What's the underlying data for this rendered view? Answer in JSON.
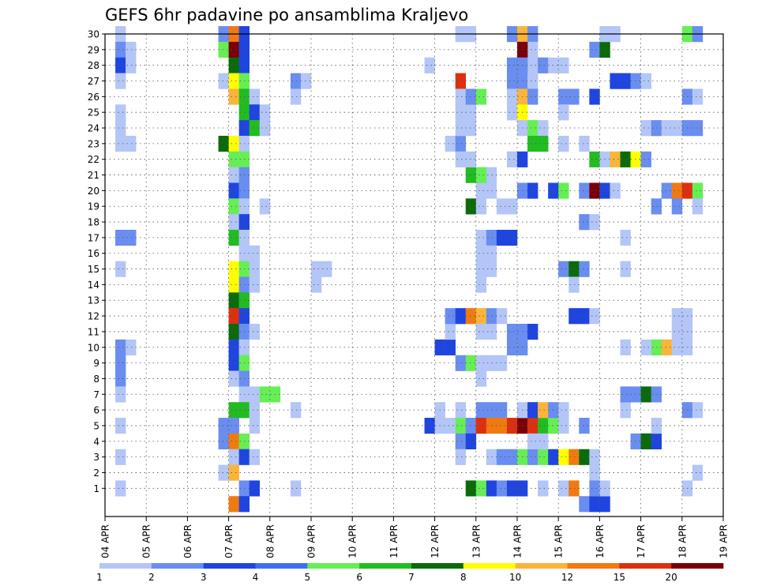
{
  "chart_data": {
    "type": "heatmap",
    "title": "GEFS 6hr padavine po ansamblima Kraljevo",
    "xlabel": "",
    "ylabel": "",
    "x_ticks": [
      "04 APR",
      "05 APR",
      "06 APR",
      "07 APR",
      "08 APR",
      "09 APR",
      "10 APR",
      "11 APR",
      "12 APR",
      "13 APR",
      "14 APR",
      "15 APR",
      "16 APR",
      "17 APR",
      "18 APR",
      "19 APR"
    ],
    "y_ticks": [
      1,
      2,
      3,
      4,
      5,
      6,
      7,
      8,
      9,
      10,
      11,
      12,
      13,
      14,
      15,
      16,
      17,
      18,
      19,
      20,
      21,
      22,
      23,
      24,
      25,
      26,
      27,
      28,
      29,
      30
    ],
    "ylim": [
      0,
      30
    ],
    "x_steps": 60,
    "grid": true,
    "legend": {
      "position": "bottom",
      "labels": [
        "1",
        "2",
        "3",
        "4",
        "5",
        "6",
        "7",
        "8",
        "10",
        "12",
        "15",
        "20"
      ],
      "colors": [
        "#b3c6f7",
        "#6a8df0",
        "#1f45e0",
        "#3f6ff0",
        "#66ee55",
        "#22bb22",
        "#0b6b0b",
        "#ffff00",
        "#fbb43a",
        "#f07a10",
        "#dd3010",
        "#7a0008"
      ]
    },
    "cells": [
      [
        1,
        30,
        0
      ],
      [
        1,
        29,
        1
      ],
      [
        2,
        29,
        0
      ],
      [
        1,
        28,
        2
      ],
      [
        2,
        28,
        0
      ],
      [
        1,
        27,
        0
      ],
      [
        1,
        25,
        0
      ],
      [
        1,
        24,
        0
      ],
      [
        1,
        23,
        0
      ],
      [
        2,
        23,
        0
      ],
      [
        1,
        17,
        1
      ],
      [
        2,
        17,
        1
      ],
      [
        1,
        15,
        0
      ],
      [
        1,
        10,
        1
      ],
      [
        2,
        10,
        0
      ],
      [
        1,
        9,
        1
      ],
      [
        1,
        8,
        1
      ],
      [
        1,
        7,
        0
      ],
      [
        1,
        5,
        0
      ],
      [
        1,
        3,
        0
      ],
      [
        1,
        1,
        0
      ],
      [
        11,
        30,
        1
      ],
      [
        12,
        30,
        9
      ],
      [
        13,
        30,
        2
      ],
      [
        11,
        29,
        4
      ],
      [
        12,
        29,
        11
      ],
      [
        13,
        29,
        2
      ],
      [
        12,
        28,
        6
      ],
      [
        13,
        28,
        2
      ],
      [
        11,
        27,
        0
      ],
      [
        12,
        27,
        7
      ],
      [
        13,
        27,
        4
      ],
      [
        12,
        26,
        8
      ],
      [
        13,
        26,
        5
      ],
      [
        14,
        26,
        0
      ],
      [
        13,
        25,
        5
      ],
      [
        14,
        25,
        2
      ],
      [
        15,
        25,
        0
      ],
      [
        13,
        24,
        2
      ],
      [
        14,
        24,
        5
      ],
      [
        15,
        24,
        0
      ],
      [
        11,
        23,
        6
      ],
      [
        12,
        23,
        7
      ],
      [
        13,
        23,
        0
      ],
      [
        12,
        22,
        4
      ],
      [
        13,
        22,
        4
      ],
      [
        12,
        21,
        0
      ],
      [
        13,
        21,
        1
      ],
      [
        12,
        20,
        2
      ],
      [
        13,
        20,
        1
      ],
      [
        12,
        19,
        4
      ],
      [
        13,
        19,
        0
      ],
      [
        12,
        18,
        0
      ],
      [
        13,
        18,
        2
      ],
      [
        12,
        17,
        5
      ],
      [
        13,
        17,
        0
      ],
      [
        13,
        16,
        0
      ],
      [
        14,
        16,
        0
      ],
      [
        12,
        15,
        7
      ],
      [
        13,
        15,
        4
      ],
      [
        14,
        15,
        0
      ],
      [
        12,
        14,
        7
      ],
      [
        13,
        14,
        1
      ],
      [
        14,
        14,
        0
      ],
      [
        12,
        13,
        6
      ],
      [
        13,
        13,
        5
      ],
      [
        12,
        12,
        10
      ],
      [
        13,
        12,
        2
      ],
      [
        12,
        11,
        6
      ],
      [
        13,
        11,
        1
      ],
      [
        14,
        11,
        0
      ],
      [
        12,
        10,
        2
      ],
      [
        13,
        10,
        0
      ],
      [
        12,
        9,
        2
      ],
      [
        13,
        9,
        4
      ],
      [
        12,
        8,
        0
      ],
      [
        13,
        8,
        1
      ],
      [
        13,
        7,
        0
      ],
      [
        14,
        7,
        0
      ],
      [
        15,
        7,
        4
      ],
      [
        16,
        7,
        4
      ],
      [
        12,
        6,
        5
      ],
      [
        13,
        6,
        5
      ],
      [
        14,
        6,
        0
      ],
      [
        11,
        5,
        1
      ],
      [
        12,
        5,
        1
      ],
      [
        14,
        5,
        0
      ],
      [
        11,
        4,
        1
      ],
      [
        12,
        4,
        9
      ],
      [
        13,
        4,
        4
      ],
      [
        12,
        3,
        0
      ],
      [
        13,
        3,
        2
      ],
      [
        14,
        3,
        0
      ],
      [
        11,
        2,
        0
      ],
      [
        12,
        2,
        8
      ],
      [
        13,
        1,
        1
      ],
      [
        14,
        1,
        2
      ],
      [
        12,
        0,
        9
      ],
      [
        13,
        0,
        2
      ],
      [
        15,
        19,
        0
      ],
      [
        18,
        27,
        1
      ],
      [
        19,
        27,
        0
      ],
      [
        18,
        26,
        0
      ],
      [
        18,
        6,
        0
      ],
      [
        18,
        1,
        0
      ],
      [
        20,
        15,
        0
      ],
      [
        20,
        14,
        0
      ],
      [
        21,
        15,
        0
      ],
      [
        31,
        28,
        0
      ],
      [
        34,
        30,
        0
      ],
      [
        35,
        30,
        0
      ],
      [
        33,
        23,
        0
      ],
      [
        34,
        23,
        1
      ],
      [
        34,
        25,
        0
      ],
      [
        35,
        25,
        0
      ],
      [
        32,
        10,
        2
      ],
      [
        33,
        10,
        2
      ],
      [
        33,
        11,
        0
      ],
      [
        32,
        6,
        0
      ],
      [
        34,
        6,
        0
      ],
      [
        31,
        5,
        2
      ],
      [
        32,
        5,
        0
      ],
      [
        33,
        5,
        0
      ],
      [
        34,
        5,
        4
      ],
      [
        35,
        5,
        1
      ],
      [
        36,
        6,
        1
      ],
      [
        37,
        6,
        1
      ],
      [
        38,
        6,
        1
      ],
      [
        36,
        5,
        10
      ],
      [
        37,
        5,
        9
      ],
      [
        38,
        5,
        9
      ],
      [
        39,
        5,
        10
      ],
      [
        40,
        5,
        11
      ],
      [
        41,
        5,
        10
      ],
      [
        42,
        5,
        5
      ],
      [
        43,
        5,
        4
      ],
      [
        44,
        5,
        0
      ],
      [
        46,
        5,
        1
      ],
      [
        33,
        12,
        1
      ],
      [
        34,
        12,
        2
      ],
      [
        35,
        12,
        9
      ],
      [
        36,
        12,
        8
      ],
      [
        37,
        12,
        1
      ],
      [
        38,
        12,
        0
      ],
      [
        36,
        11,
        0
      ],
      [
        37,
        11,
        0
      ],
      [
        34,
        9,
        1
      ],
      [
        35,
        9,
        4
      ],
      [
        36,
        9,
        0
      ],
      [
        37,
        9,
        0
      ],
      [
        38,
        9,
        0
      ],
      [
        36,
        8,
        0
      ],
      [
        34,
        4,
        1
      ],
      [
        35,
        4,
        2
      ],
      [
        34,
        3,
        0
      ],
      [
        37,
        3,
        0
      ],
      [
        38,
        3,
        1
      ],
      [
        39,
        3,
        1
      ],
      [
        40,
        3,
        4
      ],
      [
        41,
        3,
        1
      ],
      [
        42,
        3,
        4
      ],
      [
        43,
        3,
        2
      ],
      [
        44,
        3,
        7
      ],
      [
        45,
        3,
        9
      ],
      [
        46,
        3,
        6
      ],
      [
        47,
        3,
        0
      ],
      [
        35,
        1,
        6
      ],
      [
        36,
        1,
        4
      ],
      [
        37,
        1,
        2
      ],
      [
        38,
        1,
        1
      ],
      [
        39,
        1,
        2
      ],
      [
        40,
        1,
        2
      ],
      [
        42,
        1,
        0
      ],
      [
        44,
        1,
        0
      ],
      [
        45,
        1,
        9
      ],
      [
        35,
        19,
        6
      ],
      [
        36,
        19,
        0
      ],
      [
        36,
        20,
        0
      ],
      [
        37,
        20,
        0
      ],
      [
        37,
        21,
        0
      ],
      [
        36,
        17,
        0
      ],
      [
        37,
        17,
        1
      ],
      [
        38,
        17,
        2
      ],
      [
        36,
        16,
        0
      ],
      [
        37,
        16,
        0
      ],
      [
        36,
        15,
        0
      ],
      [
        37,
        15,
        0
      ],
      [
        36,
        14,
        0
      ],
      [
        34,
        27,
        10
      ],
      [
        34,
        26,
        0
      ],
      [
        35,
        26,
        1
      ],
      [
        36,
        26,
        4
      ],
      [
        34,
        24,
        0
      ],
      [
        35,
        24,
        0
      ],
      [
        35,
        21,
        5
      ],
      [
        36,
        21,
        4
      ],
      [
        34,
        22,
        0
      ],
      [
        35,
        22,
        0
      ],
      [
        38,
        19,
        0
      ],
      [
        39,
        19,
        0
      ],
      [
        39,
        30,
        1
      ],
      [
        40,
        30,
        8
      ],
      [
        41,
        30,
        1
      ],
      [
        41,
        29,
        0
      ],
      [
        41,
        28,
        0
      ],
      [
        42,
        28,
        1
      ],
      [
        43,
        28,
        0
      ],
      [
        44,
        28,
        0
      ],
      [
        39,
        27,
        1
      ],
      [
        40,
        27,
        1
      ],
      [
        41,
        27,
        0
      ],
      [
        39,
        26,
        0
      ],
      [
        40,
        26,
        8
      ],
      [
        41,
        26,
        1
      ],
      [
        39,
        25,
        0
      ],
      [
        40,
        25,
        7
      ],
      [
        40,
        24,
        0
      ],
      [
        41,
        24,
        4
      ],
      [
        42,
        24,
        0
      ],
      [
        41,
        23,
        5
      ],
      [
        42,
        23,
        5
      ],
      [
        39,
        22,
        0
      ],
      [
        40,
        22,
        2
      ],
      [
        40,
        20,
        1
      ],
      [
        41,
        20,
        2
      ],
      [
        43,
        20,
        2
      ],
      [
        44,
        20,
        4
      ],
      [
        40,
        29,
        11
      ],
      [
        40,
        28,
        1
      ],
      [
        39,
        28,
        1
      ],
      [
        39,
        17,
        2
      ],
      [
        39,
        11,
        1
      ],
      [
        39,
        10,
        1
      ],
      [
        40,
        10,
        1
      ],
      [
        40,
        11,
        1
      ],
      [
        41,
        11,
        2
      ],
      [
        40,
        6,
        0
      ],
      [
        41,
        6,
        2
      ],
      [
        42,
        6,
        8
      ],
      [
        43,
        6,
        1
      ],
      [
        44,
        6,
        0
      ],
      [
        41,
        4,
        0
      ],
      [
        42,
        4,
        0
      ],
      [
        44,
        26,
        1
      ],
      [
        45,
        26,
        1
      ],
      [
        44,
        25,
        0
      ],
      [
        44,
        23,
        0
      ],
      [
        46,
        23,
        0
      ],
      [
        46,
        20,
        1
      ],
      [
        47,
        20,
        11
      ],
      [
        48,
        20,
        2
      ],
      [
        49,
        20,
        0
      ],
      [
        46,
        18,
        1
      ],
      [
        47,
        18,
        0
      ],
      [
        44,
        15,
        1
      ],
      [
        45,
        15,
        6
      ],
      [
        46,
        15,
        1
      ],
      [
        45,
        12,
        2
      ],
      [
        46,
        12,
        2
      ],
      [
        47,
        12,
        0
      ],
      [
        45,
        14,
        0
      ],
      [
        46,
        0,
        1
      ],
      [
        47,
        0,
        2
      ],
      [
        48,
        0,
        2
      ],
      [
        47,
        2,
        0
      ],
      [
        47,
        1,
        1
      ],
      [
        48,
        1,
        0
      ],
      [
        47,
        26,
        2
      ],
      [
        47,
        29,
        1
      ],
      [
        48,
        29,
        6
      ],
      [
        47,
        22,
        5
      ],
      [
        48,
        22,
        0
      ],
      [
        49,
        22,
        8
      ],
      [
        50,
        22,
        6
      ],
      [
        51,
        22,
        7
      ],
      [
        52,
        22,
        1
      ],
      [
        49,
        27,
        2
      ],
      [
        50,
        27,
        2
      ],
      [
        51,
        27,
        1
      ],
      [
        52,
        27,
        0
      ],
      [
        48,
        30,
        0
      ],
      [
        49,
        30,
        0
      ],
      [
        50,
        17,
        0
      ],
      [
        50,
        15,
        0
      ],
      [
        50,
        10,
        0
      ],
      [
        50,
        6,
        0
      ],
      [
        52,
        4,
        2
      ],
      [
        50,
        7,
        1
      ],
      [
        51,
        7,
        1
      ],
      [
        52,
        7,
        6
      ],
      [
        53,
        7,
        1
      ],
      [
        51,
        4,
        1
      ],
      [
        52,
        4,
        6
      ],
      [
        53,
        4,
        2
      ],
      [
        52,
        24,
        0
      ],
      [
        53,
        24,
        1
      ],
      [
        54,
        24,
        0
      ],
      [
        55,
        24,
        0
      ],
      [
        56,
        24,
        1
      ],
      [
        57,
        24,
        1
      ],
      [
        54,
        20,
        1
      ],
      [
        55,
        20,
        9
      ],
      [
        56,
        20,
        10
      ],
      [
        57,
        20,
        4
      ],
      [
        53,
        19,
        1
      ],
      [
        55,
        19,
        1
      ],
      [
        57,
        19,
        0
      ],
      [
        53,
        10,
        4
      ],
      [
        54,
        10,
        8
      ],
      [
        55,
        10,
        0
      ],
      [
        56,
        10,
        0
      ],
      [
        52,
        10,
        0
      ],
      [
        55,
        11,
        0
      ],
      [
        56,
        11,
        0
      ],
      [
        55,
        12,
        0
      ],
      [
        56,
        12,
        0
      ],
      [
        56,
        26,
        1
      ],
      [
        57,
        26,
        0
      ],
      [
        56,
        30,
        4
      ],
      [
        57,
        30,
        1
      ],
      [
        56,
        6,
        1
      ],
      [
        57,
        6,
        0
      ],
      [
        57,
        2,
        0
      ],
      [
        56,
        1,
        0
      ],
      [
        53,
        5,
        0
      ]
    ]
  }
}
